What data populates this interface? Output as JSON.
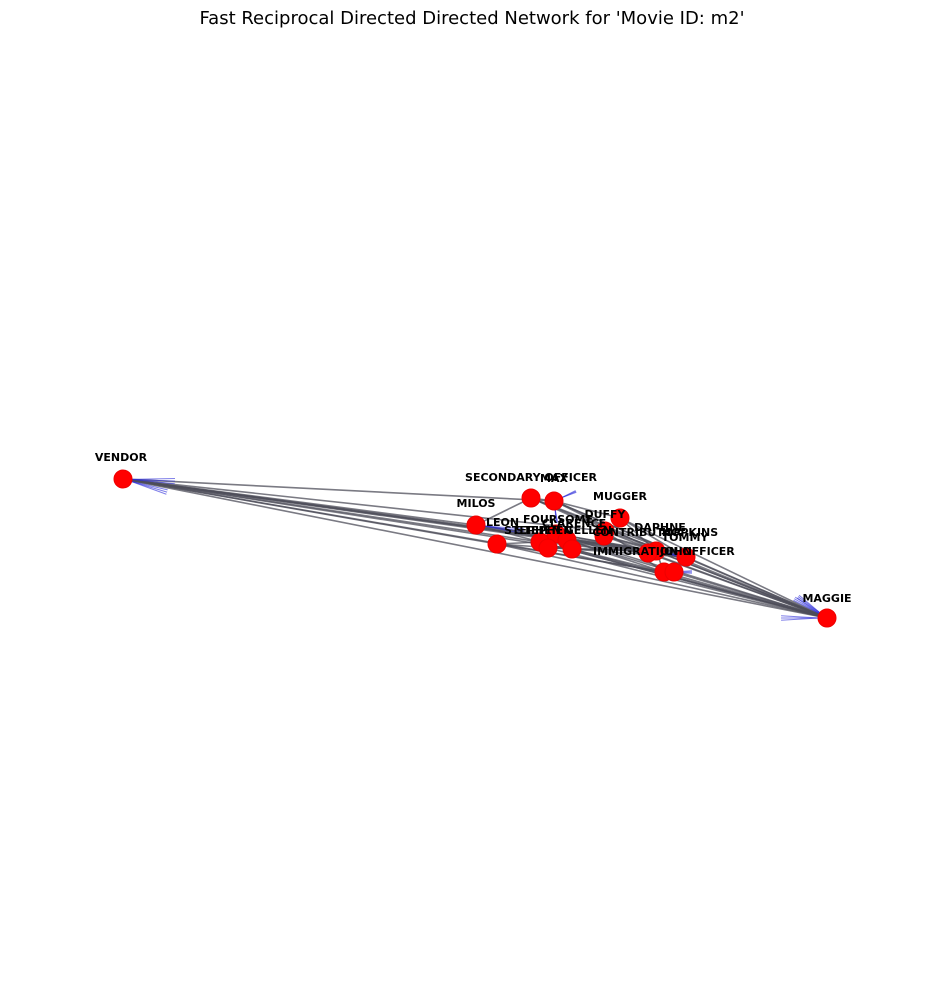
{
  "title": "Fast Reciprocal Directed Directed Network for 'Movie ID: m2'",
  "colors": {
    "node": "#ff0000",
    "edge": "#4d4d5a",
    "arrow": "#2a2ad8",
    "label": "#000000"
  },
  "chart_data": {
    "type": "network",
    "directed": true,
    "nodes": [
      {
        "id": "VENDOR",
        "label": "VENDOR"
      },
      {
        "id": "MILOS",
        "label": "MILOS"
      },
      {
        "id": "SECONDARY_OFFICER",
        "label": "SECONDARY OFFICER"
      },
      {
        "id": "MAX",
        "label": "MAX"
      },
      {
        "id": "MUGGER",
        "label": "MUGGER"
      },
      {
        "id": "DUFFY",
        "label": "DUFFY"
      },
      {
        "id": "LEON",
        "label": "LEON"
      },
      {
        "id": "FOURSOME",
        "label": "FOURSOME"
      },
      {
        "id": "CLARENCE",
        "label": "CLARENCE"
      },
      {
        "id": "STEPHEN",
        "label": "STEPHEN"
      },
      {
        "id": "STEPHEN_GELLEN",
        "label": "STEPHEN GELLEN"
      },
      {
        "id": "DAPHNE",
        "label": "DAPHNE"
      },
      {
        "id": "HOPKINS",
        "label": "HOPKINS"
      },
      {
        "id": "TOMMY",
        "label": "TOMMY"
      },
      {
        "id": "IMMIGRATION_OFFICER",
        "label": "IMMIGRATION OFFICER"
      },
      {
        "id": "CONTRIBUTOR",
        "label": "CONTRIBUTOR"
      },
      {
        "id": "JOHN",
        "label": "JOHN"
      },
      {
        "id": "MAGGIE",
        "label": "MAGGIE"
      }
    ]
  }
}
